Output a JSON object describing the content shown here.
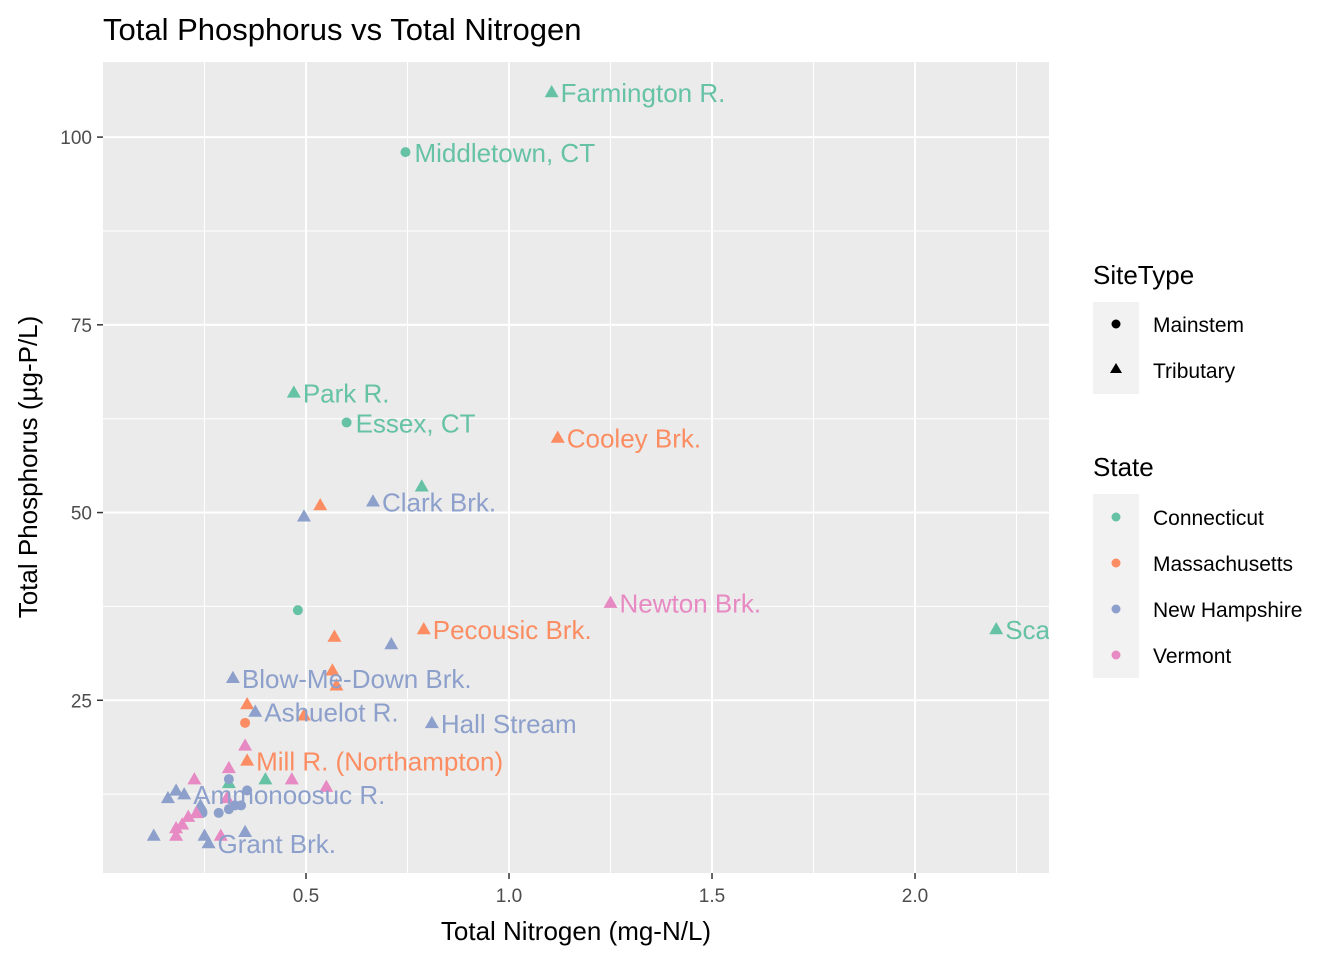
{
  "chart_data": {
    "type": "scatter",
    "title": "Total Phosphorus vs Total Nitrogen",
    "xlabel": "Total Nitrogen (mg-N/L)",
    "ylabel": "Total Phosphorus (µg-P/L)",
    "xlim": [
      0.0,
      2.33
    ],
    "ylim": [
      2,
      110
    ],
    "x_ticks": [
      "0.5",
      "1.0",
      "1.5",
      "2.0"
    ],
    "y_ticks": [
      "25",
      "50",
      "75",
      "100"
    ],
    "x_tick_values": [
      0.5,
      1.0,
      1.5,
      2.0
    ],
    "y_tick_values": [
      25,
      50,
      75,
      100
    ],
    "grid": true,
    "legend_position": "right",
    "colors": {
      "Connecticut": "#66c2a5",
      "Massachusetts": "#fc8d62",
      "New Hampshire": "#8da0cb",
      "Vermont": "#e78ac3"
    },
    "legend": {
      "sitetype": {
        "title": "SiteType",
        "items": [
          "Mainstem",
          "Tributary"
        ]
      },
      "state": {
        "title": "State",
        "items": [
          "Connecticut",
          "Massachusetts",
          "New Hampshire",
          "Vermont"
        ]
      }
    },
    "points": [
      {
        "x": 1.105,
        "y": 106,
        "state": "Connecticut",
        "site": "Tributary",
        "label": "Farmington R."
      },
      {
        "x": 0.745,
        "y": 98,
        "state": "Connecticut",
        "site": "Mainstem",
        "label": "Middletown, CT"
      },
      {
        "x": 0.47,
        "y": 66,
        "state": "Connecticut",
        "site": "Tributary",
        "label": "Park R."
      },
      {
        "x": 0.6,
        "y": 62,
        "state": "Connecticut",
        "site": "Mainstem",
        "label": "Essex, CT"
      },
      {
        "x": 1.12,
        "y": 60,
        "state": "Massachusetts",
        "site": "Tributary",
        "label": "Cooley Brk."
      },
      {
        "x": 0.665,
        "y": 51.5,
        "state": "New Hampshire",
        "site": "Tributary",
        "label": "Clark Brk."
      },
      {
        "x": 0.785,
        "y": 53.5,
        "state": "Connecticut",
        "site": "Tributary",
        "label": ""
      },
      {
        "x": 0.535,
        "y": 51,
        "state": "Massachusetts",
        "site": "Tributary",
        "label": ""
      },
      {
        "x": 0.495,
        "y": 49.5,
        "state": "New Hampshire",
        "site": "Tributary",
        "label": ""
      },
      {
        "x": 1.25,
        "y": 38,
        "state": "Vermont",
        "site": "Tributary",
        "label": "Newton Brk."
      },
      {
        "x": 0.48,
        "y": 37,
        "state": "Connecticut",
        "site": "Mainstem",
        "label": ""
      },
      {
        "x": 2.2,
        "y": 34.5,
        "state": "Connecticut",
        "site": "Tributary",
        "label": "Scantic R."
      },
      {
        "x": 0.79,
        "y": 34.5,
        "state": "Massachusetts",
        "site": "Tributary",
        "label": "Pecousic Brk."
      },
      {
        "x": 0.57,
        "y": 33.5,
        "state": "Massachusetts",
        "site": "Tributary",
        "label": ""
      },
      {
        "x": 0.71,
        "y": 32.5,
        "state": "New Hampshire",
        "site": "Tributary",
        "label": ""
      },
      {
        "x": 0.32,
        "y": 28,
        "state": "New Hampshire",
        "site": "Tributary",
        "label": "Blow-Me-Down Brk."
      },
      {
        "x": 0.565,
        "y": 29,
        "state": "Massachusetts",
        "site": "Tributary",
        "label": ""
      },
      {
        "x": 0.575,
        "y": 27,
        "state": "Massachusetts",
        "site": "Tributary",
        "label": ""
      },
      {
        "x": 0.355,
        "y": 24.5,
        "state": "Massachusetts",
        "site": "Tributary",
        "label": ""
      },
      {
        "x": 0.375,
        "y": 23.5,
        "state": "New Hampshire",
        "site": "Tributary",
        "label": "Ashuelot R."
      },
      {
        "x": 0.495,
        "y": 23,
        "state": "Massachusetts",
        "site": "Tributary",
        "label": ""
      },
      {
        "x": 0.35,
        "y": 22,
        "state": "Massachusetts",
        "site": "Mainstem",
        "label": ""
      },
      {
        "x": 0.81,
        "y": 22,
        "state": "New Hampshire",
        "site": "Tributary",
        "label": "Hall Stream"
      },
      {
        "x": 0.35,
        "y": 19,
        "state": "Vermont",
        "site": "Tributary",
        "label": ""
      },
      {
        "x": 0.355,
        "y": 17,
        "state": "Massachusetts",
        "site": "Tributary",
        "label": "Mill R. (Northampton)"
      },
      {
        "x": 0.31,
        "y": 16,
        "state": "Vermont",
        "site": "Tributary",
        "label": ""
      },
      {
        "x": 0.31,
        "y": 14,
        "state": "Connecticut",
        "site": "Tributary",
        "label": ""
      },
      {
        "x": 0.31,
        "y": 14.5,
        "state": "New Hampshire",
        "site": "Mainstem",
        "label": ""
      },
      {
        "x": 0.4,
        "y": 14.5,
        "state": "Connecticut",
        "site": "Tributary",
        "label": ""
      },
      {
        "x": 0.465,
        "y": 14.5,
        "state": "Vermont",
        "site": "Tributary",
        "label": ""
      },
      {
        "x": 0.55,
        "y": 13.5,
        "state": "Vermont",
        "site": "Tributary",
        "label": ""
      },
      {
        "x": 0.225,
        "y": 14.5,
        "state": "Vermont",
        "site": "Tributary",
        "label": ""
      },
      {
        "x": 0.355,
        "y": 13,
        "state": "New Hampshire",
        "site": "Mainstem",
        "label": ""
      },
      {
        "x": 0.16,
        "y": 12,
        "state": "New Hampshire",
        "site": "Tributary",
        "label": ""
      },
      {
        "x": 0.18,
        "y": 13,
        "state": "New Hampshire",
        "site": "Tributary",
        "label": ""
      },
      {
        "x": 0.2,
        "y": 12.5,
        "state": "New Hampshire",
        "site": "Tributary",
        "label": "Ammonoosuc R."
      },
      {
        "x": 0.305,
        "y": 12,
        "state": "Vermont",
        "site": "Tributary",
        "label": ""
      },
      {
        "x": 0.325,
        "y": 11,
        "state": "New Hampshire",
        "site": "Mainstem",
        "label": ""
      },
      {
        "x": 0.34,
        "y": 11,
        "state": "New Hampshire",
        "site": "Mainstem",
        "label": ""
      },
      {
        "x": 0.24,
        "y": 11,
        "state": "New Hampshire",
        "site": "Tributary",
        "label": ""
      },
      {
        "x": 0.245,
        "y": 10,
        "state": "New Hampshire",
        "site": "Mainstem",
        "label": ""
      },
      {
        "x": 0.23,
        "y": 10,
        "state": "Vermont",
        "site": "Tributary",
        "label": ""
      },
      {
        "x": 0.285,
        "y": 10,
        "state": "New Hampshire",
        "site": "Mainstem",
        "label": ""
      },
      {
        "x": 0.31,
        "y": 10.5,
        "state": "New Hampshire",
        "site": "Mainstem",
        "label": ""
      },
      {
        "x": 0.21,
        "y": 9.5,
        "state": "Vermont",
        "site": "Tributary",
        "label": ""
      },
      {
        "x": 0.195,
        "y": 8.5,
        "state": "Vermont",
        "site": "Tributary",
        "label": ""
      },
      {
        "x": 0.18,
        "y": 8,
        "state": "Vermont",
        "site": "Tributary",
        "label": ""
      },
      {
        "x": 0.18,
        "y": 7,
        "state": "Vermont",
        "site": "Tributary",
        "label": ""
      },
      {
        "x": 0.125,
        "y": 7,
        "state": "New Hampshire",
        "site": "Tributary",
        "label": ""
      },
      {
        "x": 0.25,
        "y": 7,
        "state": "New Hampshire",
        "site": "Tributary",
        "label": ""
      },
      {
        "x": 0.29,
        "y": 7,
        "state": "Vermont",
        "site": "Tributary",
        "label": ""
      },
      {
        "x": 0.35,
        "y": 7.5,
        "state": "New Hampshire",
        "site": "Tributary",
        "label": ""
      },
      {
        "x": 0.26,
        "y": 6,
        "state": "New Hampshire",
        "site": "Tributary",
        "label": "Grant Brk."
      }
    ]
  }
}
